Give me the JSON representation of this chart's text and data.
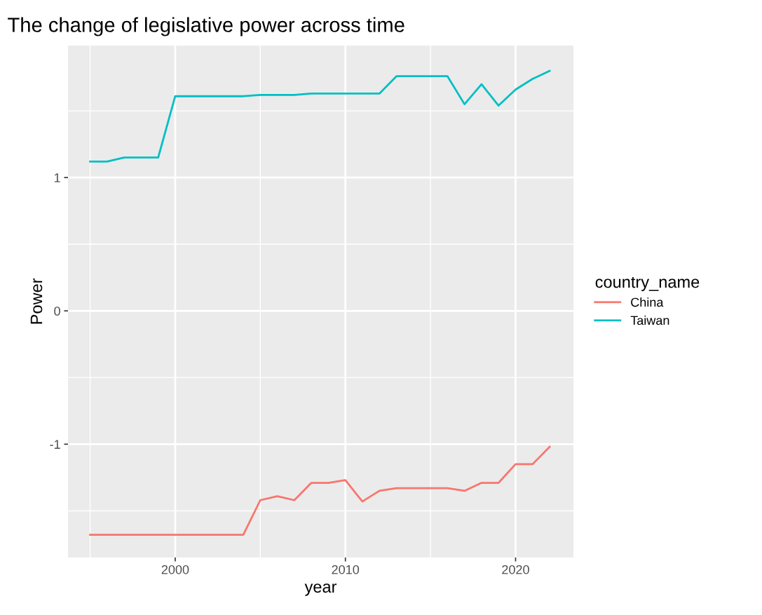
{
  "chart_data": {
    "type": "line",
    "title": "The change of legislative power across time",
    "xlabel": "year",
    "ylabel": "Power",
    "legend_title": "country_name",
    "x": [
      1995,
      1996,
      1997,
      1998,
      1999,
      2000,
      2001,
      2002,
      2003,
      2004,
      2005,
      2006,
      2007,
      2008,
      2009,
      2010,
      2011,
      2012,
      2013,
      2014,
      2015,
      2016,
      2017,
      2018,
      2019,
      2020,
      2021,
      2022
    ],
    "series": [
      {
        "name": "China",
        "color": "#f8766d",
        "values": [
          -1.68,
          -1.68,
          -1.68,
          -1.68,
          -1.68,
          -1.68,
          -1.68,
          -1.68,
          -1.68,
          -1.68,
          -1.42,
          -1.39,
          -1.42,
          -1.29,
          -1.29,
          -1.27,
          -1.43,
          -1.35,
          -1.33,
          -1.33,
          -1.33,
          -1.33,
          -1.35,
          -1.29,
          -1.29,
          -1.15,
          -1.15,
          -1.02
        ]
      },
      {
        "name": "Taiwan",
        "color": "#00bfc4",
        "values": [
          1.12,
          1.12,
          1.15,
          1.15,
          1.15,
          1.61,
          1.61,
          1.61,
          1.61,
          1.61,
          1.62,
          1.62,
          1.62,
          1.63,
          1.63,
          1.63,
          1.63,
          1.63,
          1.76,
          1.76,
          1.76,
          1.76,
          1.55,
          1.7,
          1.54,
          1.66,
          1.74,
          1.8
        ]
      }
    ],
    "xlim": [
      1993.7,
      2023.4
    ],
    "ylim": [
      -1.85,
      1.99
    ],
    "xticks": [
      2000,
      2010,
      2020
    ],
    "yticks": [
      -1,
      0,
      1
    ],
    "grid": true,
    "legend": "right",
    "marker": "none",
    "line_style": "solid"
  }
}
